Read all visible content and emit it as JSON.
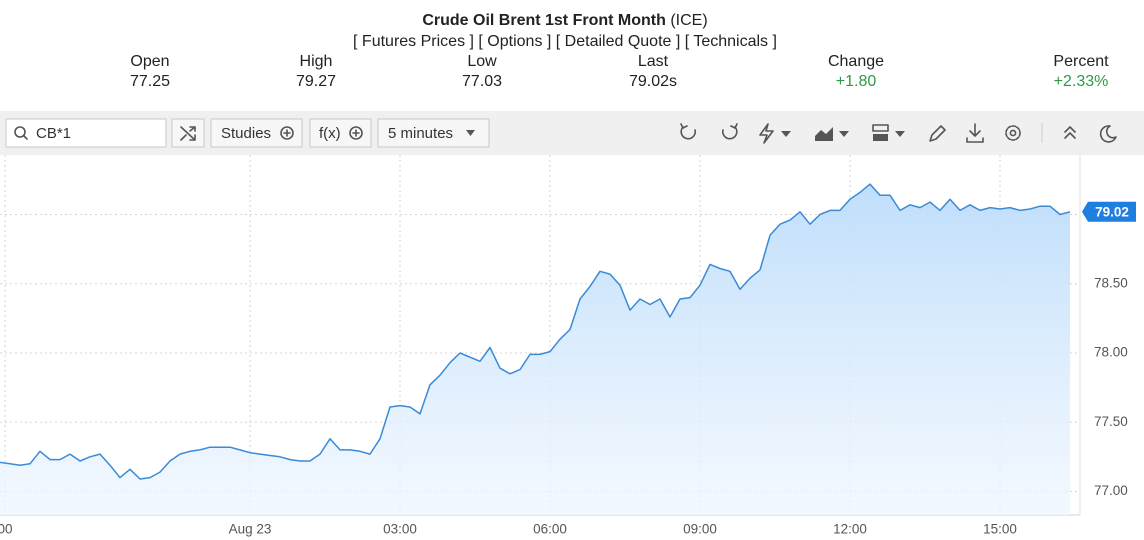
{
  "header": {
    "title": "Crude Oil Brent 1st Front Month",
    "exchange": "(ICE)",
    "links": [
      "[ Futures Prices ]",
      "[ Options ]",
      "[ Detailed Quote ]",
      "[ Technicals ]"
    ]
  },
  "quote": [
    {
      "label": "Open",
      "value": "77.25"
    },
    {
      "label": "High",
      "value": "79.27"
    },
    {
      "label": "Low",
      "value": "77.03"
    },
    {
      "label": "Last",
      "value": "79.02s"
    },
    {
      "label": "Change",
      "value": "+1.80"
    },
    {
      "label": "Percent",
      "value": "+2.33%"
    }
  ],
  "toolbar": {
    "search": "CB*1",
    "studies": "Studies",
    "function": "f(x)",
    "interval": "5 minutes"
  },
  "chart_data": {
    "type": "area",
    "color": "#3a8ad6",
    "x": [
      -5,
      -4.8,
      -4.6,
      -4.4,
      -4.2,
      -4,
      -3.8,
      -3.6,
      -3.4,
      -3.2,
      -3,
      -2.8,
      -2.6,
      -2.4,
      -2.2,
      -2,
      -1.8,
      -1.6,
      -1.4,
      -1.2,
      -1,
      -0.8,
      -0.6,
      -0.4,
      -0.2,
      0,
      0.2,
      0.4,
      0.6,
      0.8,
      1,
      1.2,
      1.4,
      1.6,
      1.8,
      2,
      2.2,
      2.4,
      2.6,
      2.8,
      3,
      3.2,
      3.4,
      3.6,
      3.8,
      4,
      4.2,
      4.4,
      4.6,
      4.8,
      5,
      5.2,
      5.4,
      5.6,
      5.8,
      6,
      6.2,
      6.4,
      6.6,
      6.8,
      7,
      7.2,
      7.4,
      7.6,
      7.8,
      8,
      8.2,
      8.4,
      8.6,
      8.8,
      9,
      9.2,
      9.4,
      9.6,
      9.8,
      10,
      10.2,
      10.4,
      10.6,
      10.8,
      11,
      11.2,
      11.4,
      11.6,
      11.8,
      12,
      12.2,
      12.4,
      12.6,
      12.8,
      13,
      13.2,
      13.4,
      13.6,
      13.8,
      14,
      14.2,
      14.4,
      14.6,
      14.8,
      15,
      15.2,
      15.4,
      15.6,
      15.8,
      16,
      16.2,
      16.4
    ],
    "values": [
      77.21,
      77.2,
      77.19,
      77.2,
      77.29,
      77.23,
      77.23,
      77.27,
      77.22,
      77.25,
      77.27,
      77.19,
      77.1,
      77.16,
      77.09,
      77.1,
      77.14,
      77.22,
      77.27,
      77.29,
      77.3,
      77.32,
      77.32,
      77.32,
      77.3,
      77.28,
      77.27,
      77.26,
      77.25,
      77.23,
      77.22,
      77.22,
      77.27,
      77.38,
      77.3,
      77.3,
      77.29,
      77.27,
      77.38,
      77.61,
      77.62,
      77.61,
      77.56,
      77.77,
      77.84,
      77.93,
      78.0,
      77.97,
      77.94,
      78.04,
      77.89,
      77.85,
      77.88,
      77.99,
      77.99,
      78.01,
      78.1,
      78.17,
      78.39,
      78.48,
      78.59,
      78.57,
      78.49,
      78.31,
      78.39,
      78.35,
      78.39,
      78.26,
      78.39,
      78.4,
      78.49,
      78.64,
      78.61,
      78.59,
      78.46,
      78.54,
      78.6,
      78.85,
      78.93,
      78.96,
      79.02,
      78.93,
      79.0,
      79.03,
      79.03,
      79.11,
      79.16,
      79.22,
      79.14,
      79.14,
      79.03,
      79.07,
      79.05,
      79.09,
      79.03,
      79.11,
      79.03,
      79.07,
      79.03,
      79.05,
      79.04,
      79.05,
      79.03,
      79.04,
      79.06,
      79.06,
      79.0,
      79.02
    ],
    "xlim": [
      -5,
      16.6
    ],
    "ylim": [
      76.83,
      79.43
    ],
    "xticks": [
      {
        "value": -4.9,
        "label": "00"
      },
      {
        "value": 0,
        "label": "Aug 23"
      },
      {
        "value": 3,
        "label": "03:00"
      },
      {
        "value": 6,
        "label": "06:00"
      },
      {
        "value": 9,
        "label": "09:00"
      },
      {
        "value": 12,
        "label": "12:00"
      },
      {
        "value": 15,
        "label": "15:00"
      }
    ],
    "yticks": [
      {
        "value": 77,
        "label": "77.00"
      },
      {
        "value": 77.5,
        "label": "77.50"
      },
      {
        "value": 78,
        "label": "78.00"
      },
      {
        "value": 78.5,
        "label": "78.50"
      },
      {
        "value": 79,
        "label": "79.00"
      }
    ],
    "grid": true
  }
}
